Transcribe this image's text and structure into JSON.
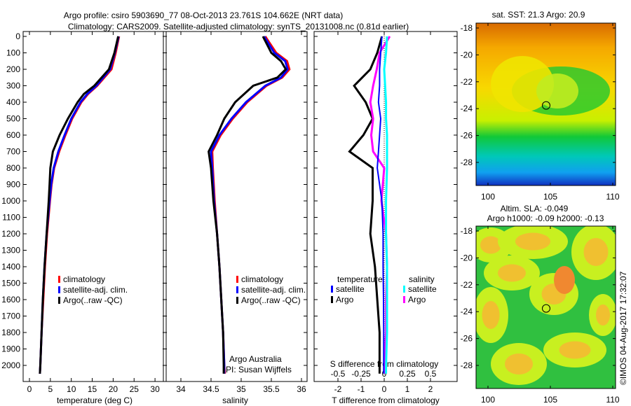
{
  "title_line1": "Argo profile: csiro 5903690_77 08-Oct-2013 23.761S 104.662E (NRT data)",
  "title_line2": "Climatology: CARS2009. Satellite-adjusted climatology: synTS_20131008.nc (0.81d earlier)",
  "credit": "©IMOS 04-Aug-2017 17:32:07",
  "colors": {
    "climatology": "#ff0000",
    "satellite": "#0000ff",
    "argo": "#000000",
    "sal_satellite": "#00ffff",
    "sal_argo": "#ff00ff"
  },
  "chart_data": [
    {
      "type": "line",
      "xlabel": "temperature (deg C)",
      "ylabel": "depth",
      "xlim": [
        -1,
        31
      ],
      "ylim": [
        2050,
        0
      ],
      "xticks": [
        "0",
        "5",
        "10",
        "15",
        "20",
        "25",
        "30"
      ],
      "yticks": [
        "0",
        "100",
        "200",
        "300",
        "400",
        "500",
        "600",
        "700",
        "800",
        "900",
        "1000",
        "1100",
        "1200",
        "1300",
        "1400",
        "1500",
        "1600",
        "1700",
        "1800",
        "1900",
        "2000"
      ],
      "legend": [
        "climatology",
        "satellite-adj. clim.",
        "Argo(..raw -QC)"
      ],
      "depth": [
        0,
        100,
        200,
        300,
        350,
        400,
        500,
        600,
        700,
        800,
        900,
        1000,
        1200,
        1400,
        1600,
        1800,
        2000,
        2050
      ],
      "series": [
        {
          "name": "climatology",
          "values": [
            21.4,
            20.6,
            19.6,
            16.2,
            14,
            12.4,
            10.2,
            8.6,
            7.1,
            5.9,
            5.3,
            4.9,
            4.2,
            3.7,
            3.3,
            2.9,
            2.6,
            2.5
          ]
        },
        {
          "name": "satellite-adj. clim.",
          "values": [
            21.3,
            20.4,
            19.3,
            16,
            13.8,
            12.2,
            10,
            8.4,
            6.9,
            5.8,
            5.2,
            4.8,
            4.1,
            3.6,
            3.2,
            2.9,
            2.6,
            2.5
          ]
        },
        {
          "name": "Argo(..raw -QC)",
          "values": [
            21.2,
            20.3,
            19.0,
            15.5,
            13,
            11.5,
            9.2,
            7.2,
            5.6,
            5.0,
            4.8,
            4.6,
            4.1,
            3.6,
            3.2,
            2.9,
            2.6,
            2.5
          ]
        }
      ]
    },
    {
      "type": "line",
      "xlabel": "salinity",
      "xlim": [
        33.6,
        36.3
      ],
      "ylim": [
        2050,
        0
      ],
      "xticks": [
        "34",
        "34.5",
        "35",
        "35.5",
        "36"
      ],
      "legend": [
        "climatology",
        "satellite-adj. clim.",
        "Argo(..raw -QC)"
      ],
      "annotation1": "Argo Australia",
      "annotation2": "PI: Susan Wijffels",
      "depth": [
        0,
        100,
        150,
        200,
        250,
        300,
        400,
        500,
        600,
        700,
        800,
        1000,
        1200,
        1400,
        1600,
        1800,
        2000,
        2050
      ],
      "series": [
        {
          "name": "climatology",
          "values": [
            35.4,
            35.58,
            35.76,
            35.8,
            35.68,
            35.42,
            35.1,
            34.86,
            34.66,
            34.52,
            34.53,
            34.56,
            34.6,
            34.64,
            34.67,
            34.7,
            34.72,
            34.73
          ]
        },
        {
          "name": "satellite-adj. clim.",
          "values": [
            35.38,
            35.55,
            35.73,
            35.77,
            35.66,
            35.4,
            35.08,
            34.84,
            34.64,
            34.5,
            34.52,
            34.55,
            34.6,
            34.64,
            34.67,
            34.7,
            34.72,
            34.72
          ]
        },
        {
          "name": "Argo(..raw -QC)",
          "values": [
            35.36,
            35.5,
            35.66,
            35.74,
            35.6,
            35.2,
            34.9,
            34.72,
            34.6,
            34.46,
            34.5,
            34.54,
            34.6,
            34.64,
            34.67,
            34.7,
            34.71,
            34.71
          ]
        }
      ]
    },
    {
      "type": "line",
      "xlabel": "T difference from climatology",
      "xlabel2": "S difference from climatology",
      "xlim": [
        -3,
        3
      ],
      "ylim": [
        2050,
        0
      ],
      "xticks": [
        "-2",
        "-1",
        "0",
        "1",
        "2"
      ],
      "xticks2": [
        "-0.5",
        "-0.25",
        "0",
        "0.25",
        "0.5"
      ],
      "legend_title_t": "temperature",
      "legend_title_s": "salinity",
      "legend": [
        "satellite",
        "Argo",
        "satellite",
        "Argo"
      ],
      "depth": [
        0,
        100,
        200,
        300,
        400,
        500,
        600,
        700,
        800,
        1000,
        1200,
        1400,
        1600,
        1800,
        2000,
        2050
      ],
      "series": [
        {
          "name": "T satellite",
          "values": [
            -0.1,
            -0.15,
            -0.2,
            -0.2,
            -0.25,
            -0.15,
            -0.2,
            -0.25,
            -0.3,
            -0.1,
            -0.05,
            -0.05,
            -0.03,
            -0.02,
            -0.02,
            -0.02
          ]
        },
        {
          "name": "T Argo",
          "values": [
            -0.1,
            -0.3,
            -0.6,
            -1.3,
            -0.8,
            -0.5,
            -0.9,
            -1.5,
            -0.5,
            -0.5,
            -0.6,
            -0.4,
            -0.3,
            -0.2,
            -0.2,
            -0.2
          ]
        },
        {
          "name": "S satellite",
          "values": [
            0.03,
            0.02,
            0.0,
            0.01,
            0.02,
            0.02,
            0.03,
            0.03,
            0.03,
            0.02,
            0.02,
            0.03,
            0.03,
            0.03,
            0.02,
            0.02
          ]
        },
        {
          "name": "S Argo",
          "values": [
            0.06,
            -0.05,
            -0.08,
            -0.12,
            -0.15,
            -0.12,
            -0.14,
            -0.12,
            0.0,
            -0.03,
            0.02,
            0.03,
            0.02,
            0.02,
            0.0,
            0.0
          ]
        }
      ]
    },
    {
      "type": "heatmap",
      "title": "sat. SST: 21.3 Argo: 20.9",
      "xticks": [
        "100",
        "105",
        "110"
      ],
      "yticks": [
        "-18",
        "-20",
        "-22",
        "-24",
        "-26",
        "-28"
      ],
      "marker": {
        "lon": 104.662,
        "lat": -23.761
      }
    },
    {
      "type": "heatmap",
      "title1": "Altim. SLA: -0.049",
      "title2": "Argo h1000: -0.09 h2000: -0.13",
      "xticks": [
        "100",
        "105",
        "110"
      ],
      "yticks": [
        "-18",
        "-20",
        "-22",
        "-24",
        "-26",
        "-28"
      ],
      "marker": {
        "lon": 104.662,
        "lat": -23.761
      }
    }
  ]
}
